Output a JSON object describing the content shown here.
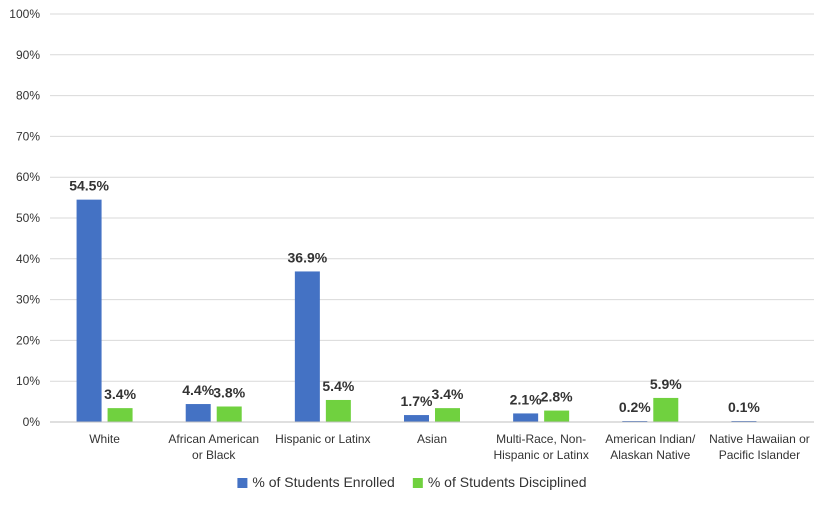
{
  "chart_data": {
    "type": "bar",
    "categories": [
      [
        "White"
      ],
      [
        "African American",
        "or Black"
      ],
      [
        "Hispanic or Latinx"
      ],
      [
        "Asian"
      ],
      [
        "Multi-Race, Non-",
        "Hispanic or Latinx"
      ],
      [
        "American Indian/",
        "Alaskan Native"
      ],
      [
        "Native Hawaiian or",
        "Pacific Islander"
      ]
    ],
    "series": [
      {
        "name": "% of Students Enrolled",
        "color": "#4472C4",
        "values": [
          54.5,
          4.4,
          36.9,
          1.7,
          2.1,
          0.2,
          0.1
        ],
        "labels": [
          "54.5%",
          "4.4%",
          "36.9%",
          "1.7%",
          "2.1%",
          "0.2%",
          "0.1%"
        ]
      },
      {
        "name": "% of Students Disciplined",
        "color": "#70D13F",
        "values": [
          3.4,
          3.8,
          5.4,
          3.4,
          2.8,
          5.9,
          null
        ],
        "labels": [
          "3.4%",
          "3.8%",
          "5.4%",
          "3.4%",
          "2.8%",
          "5.9%",
          null
        ]
      }
    ],
    "yticks": [
      "0%",
      "10%",
      "20%",
      "30%",
      "40%",
      "50%",
      "60%",
      "70%",
      "80%",
      "90%",
      "100%"
    ],
    "ylim": [
      0,
      100
    ],
    "title": "",
    "xlabel": "",
    "ylabel": "",
    "grid": true,
    "legend": "bottom"
  }
}
